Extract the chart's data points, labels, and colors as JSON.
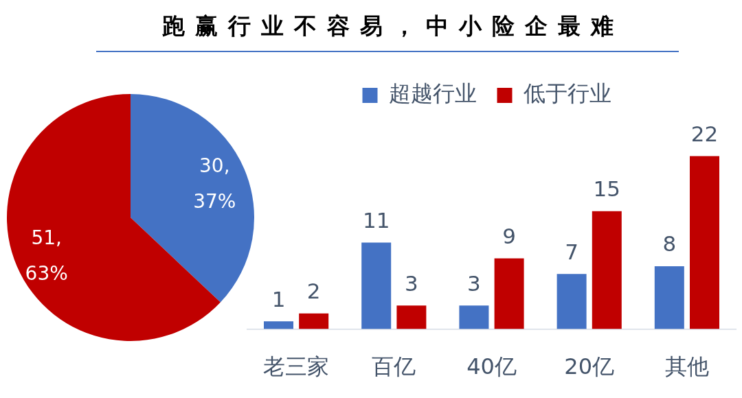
{
  "chart_data": [
    {
      "type": "other",
      "title": "跑赢行业不容易，中小险企最难"
    },
    {
      "type": "pie",
      "categories": [
        null,
        null
      ],
      "values": [
        30,
        51
      ],
      "colors": [
        "#4472c4",
        "#c00000"
      ],
      "value_labels": [
        "30,\n37%",
        "51,\n63%"
      ]
    },
    {
      "type": "bar",
      "categories": [
        "老三家",
        "百亿",
        "40亿",
        "20亿",
        "其他"
      ],
      "series": [
        {
          "name": "超越行业",
          "color": "#4472c4",
          "values": [
            1,
            11,
            3,
            7,
            8
          ]
        },
        {
          "name": "低于行业",
          "color": "#c00000",
          "values": [
            2,
            3,
            9,
            15,
            22
          ]
        }
      ],
      "data_labels": true,
      "legend": "top"
    }
  ]
}
